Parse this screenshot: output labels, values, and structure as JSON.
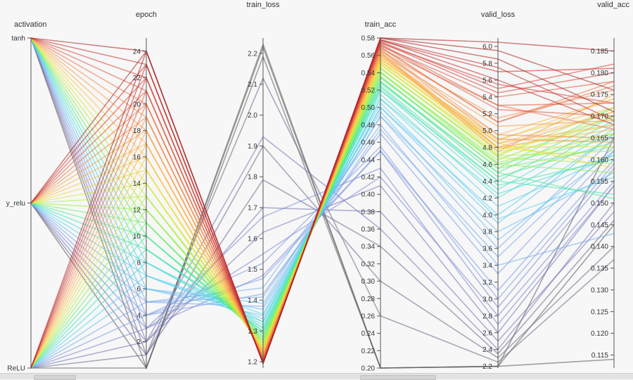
{
  "chart_data": {
    "type": "parallel_coordinates",
    "axes": [
      {
        "key": "activation",
        "label": "activation",
        "kind": "categorical",
        "categories": [
          "tanh",
          "y_relu",
          "ReLU"
        ]
      },
      {
        "key": "epoch",
        "label": "epoch",
        "kind": "numeric",
        "range": [
          0,
          25
        ],
        "ticks": [
          2,
          4,
          6,
          8,
          10,
          12,
          14,
          16,
          18,
          20,
          22,
          24
        ]
      },
      {
        "key": "train_loss",
        "label": "train_loss",
        "kind": "numeric",
        "range": [
          1.18,
          2.25
        ],
        "ticks": [
          1.2,
          1.3,
          1.4,
          1.5,
          1.6,
          1.7,
          1.8,
          1.9,
          2.0,
          2.1,
          2.2
        ]
      },
      {
        "key": "train_acc",
        "label": "train_acc",
        "kind": "numeric",
        "range": [
          0.2,
          0.58
        ],
        "ticks": [
          0.2,
          0.22,
          0.24,
          0.26,
          0.28,
          0.3,
          0.32,
          0.34,
          0.36,
          0.38,
          0.4,
          0.42,
          0.44,
          0.46,
          0.48,
          0.5,
          0.52,
          0.54,
          0.56,
          0.58
        ]
      },
      {
        "key": "valid_loss",
        "label": "valid_loss",
        "kind": "numeric",
        "range": [
          2.18,
          6.1
        ],
        "ticks": [
          2.2,
          2.4,
          2.6,
          2.8,
          3.0,
          3.2,
          3.4,
          3.6,
          3.8,
          4.0,
          4.2,
          4.4,
          4.6,
          4.8,
          5.0,
          5.2,
          5.4,
          5.6,
          5.8,
          6.0
        ]
      },
      {
        "key": "valid_acc",
        "label": "valid_acc",
        "kind": "numeric",
        "range": [
          0.112,
          0.188
        ],
        "ticks": [
          0.115,
          0.12,
          0.125,
          0.13,
          0.135,
          0.14,
          0.145,
          0.15,
          0.155,
          0.16,
          0.165,
          0.17,
          0.175,
          0.18,
          0.185
        ]
      }
    ],
    "records": [
      [
        "tanh",
        0,
        2.19,
        0.2,
        2.2,
        0.165
      ],
      [
        "tanh",
        1,
        1.79,
        0.34,
        2.35,
        0.146
      ],
      [
        "tanh",
        2,
        1.62,
        0.41,
        2.6,
        0.154
      ],
      [
        "tanh",
        3,
        1.48,
        0.45,
        2.9,
        0.158
      ],
      [
        "tanh",
        4,
        1.42,
        0.47,
        3.3,
        0.162
      ],
      [
        "tanh",
        5,
        1.38,
        0.49,
        3.6,
        0.165
      ],
      [
        "tanh",
        6,
        1.35,
        0.5,
        3.9,
        0.166
      ],
      [
        "tanh",
        7,
        1.33,
        0.51,
        4.1,
        0.161
      ],
      [
        "tanh",
        8,
        1.31,
        0.52,
        4.3,
        0.168
      ],
      [
        "tanh",
        9,
        1.3,
        0.525,
        4.4,
        0.152
      ],
      [
        "tanh",
        10,
        1.28,
        0.53,
        4.5,
        0.17
      ],
      [
        "tanh",
        11,
        1.27,
        0.535,
        4.55,
        0.163
      ],
      [
        "tanh",
        12,
        1.26,
        0.54,
        4.6,
        0.157
      ],
      [
        "tanh",
        13,
        1.25,
        0.545,
        4.7,
        0.172
      ],
      [
        "tanh",
        14,
        1.24,
        0.55,
        4.75,
        0.166
      ],
      [
        "tanh",
        15,
        1.235,
        0.553,
        4.8,
        0.16
      ],
      [
        "tanh",
        16,
        1.23,
        0.556,
        4.85,
        0.171
      ],
      [
        "tanh",
        17,
        1.225,
        0.559,
        4.95,
        0.174
      ],
      [
        "tanh",
        18,
        1.22,
        0.562,
        5.05,
        0.169
      ],
      [
        "tanh",
        19,
        1.215,
        0.565,
        5.15,
        0.176
      ],
      [
        "tanh",
        20,
        1.21,
        0.568,
        5.3,
        0.167
      ],
      [
        "tanh",
        21,
        1.205,
        0.571,
        5.4,
        0.178
      ],
      [
        "tanh",
        22,
        1.2,
        0.574,
        5.55,
        0.173
      ],
      [
        "tanh",
        23,
        1.197,
        0.577,
        5.7,
        0.181
      ],
      [
        "tanh",
        24,
        1.195,
        0.58,
        5.85,
        0.171
      ],
      [
        "y_relu",
        0,
        2.22,
        0.2,
        2.2,
        0.145
      ],
      [
        "y_relu",
        1,
        1.9,
        0.3,
        2.3,
        0.14
      ],
      [
        "y_relu",
        2,
        1.7,
        0.38,
        2.5,
        0.148
      ],
      [
        "y_relu",
        3,
        1.55,
        0.42,
        2.8,
        0.155
      ],
      [
        "y_relu",
        4,
        1.47,
        0.45,
        3.1,
        0.16
      ],
      [
        "y_relu",
        5,
        1.41,
        0.475,
        3.5,
        0.163
      ],
      [
        "y_relu",
        6,
        1.37,
        0.49,
        3.8,
        0.157
      ],
      [
        "y_relu",
        7,
        1.34,
        0.5,
        4.0,
        0.166
      ],
      [
        "y_relu",
        8,
        1.32,
        0.51,
        4.25,
        0.161
      ],
      [
        "y_relu",
        9,
        1.3,
        0.52,
        4.4,
        0.169
      ],
      [
        "y_relu",
        10,
        1.29,
        0.528,
        4.5,
        0.151
      ],
      [
        "y_relu",
        11,
        1.27,
        0.534,
        4.6,
        0.165
      ],
      [
        "y_relu",
        12,
        1.26,
        0.54,
        4.65,
        0.17
      ],
      [
        "y_relu",
        13,
        1.25,
        0.545,
        4.7,
        0.162
      ],
      [
        "y_relu",
        14,
        1.245,
        0.549,
        4.78,
        0.168
      ],
      [
        "y_relu",
        15,
        1.24,
        0.552,
        4.85,
        0.158
      ],
      [
        "y_relu",
        16,
        1.232,
        0.556,
        4.9,
        0.172
      ],
      [
        "y_relu",
        17,
        1.226,
        0.56,
        4.8,
        0.167
      ],
      [
        "y_relu",
        18,
        1.22,
        0.563,
        4.75,
        0.175
      ],
      [
        "y_relu",
        19,
        1.214,
        0.566,
        4.9,
        0.164
      ],
      [
        "y_relu",
        20,
        1.208,
        0.569,
        5.1,
        0.177
      ],
      [
        "y_relu",
        21,
        1.204,
        0.572,
        5.25,
        0.17
      ],
      [
        "y_relu",
        22,
        1.2,
        0.575,
        5.45,
        0.18
      ],
      [
        "y_relu",
        23,
        1.197,
        0.578,
        5.6,
        0.168
      ],
      [
        "y_relu",
        24,
        1.194,
        0.58,
        6.05,
        0.185
      ],
      [
        "ReLU",
        0,
        2.23,
        0.2,
        2.2,
        0.114
      ],
      [
        "ReLU",
        1,
        2.12,
        0.26,
        2.25,
        0.137
      ],
      [
        "ReLU",
        2,
        1.93,
        0.36,
        2.4,
        0.15
      ],
      [
        "ReLU",
        3,
        1.67,
        0.43,
        2.7,
        0.154
      ],
      [
        "ReLU",
        4,
        1.52,
        0.455,
        3.0,
        0.159
      ],
      [
        "ReLU",
        5,
        1.44,
        0.48,
        3.4,
        0.143
      ],
      [
        "ReLU",
        6,
        1.39,
        0.495,
        3.7,
        0.162
      ],
      [
        "ReLU",
        7,
        1.355,
        0.505,
        3.95,
        0.156
      ],
      [
        "ReLU",
        8,
        1.33,
        0.515,
        4.2,
        0.167
      ],
      [
        "ReLU",
        9,
        1.31,
        0.523,
        4.35,
        0.16
      ],
      [
        "ReLU",
        10,
        1.29,
        0.53,
        4.45,
        0.164
      ],
      [
        "ReLU",
        11,
        1.28,
        0.536,
        4.55,
        0.172
      ],
      [
        "ReLU",
        12,
        1.27,
        0.541,
        4.62,
        0.166
      ],
      [
        "ReLU",
        13,
        1.26,
        0.546,
        4.68,
        0.159
      ],
      [
        "ReLU",
        14,
        1.25,
        0.55,
        4.72,
        0.17
      ],
      [
        "ReLU",
        15,
        1.24,
        0.554,
        4.8,
        0.163
      ],
      [
        "ReLU",
        16,
        1.235,
        0.557,
        4.88,
        0.174
      ],
      [
        "ReLU",
        17,
        1.228,
        0.561,
        4.85,
        0.168
      ],
      [
        "ReLU",
        18,
        1.222,
        0.564,
        4.8,
        0.171
      ],
      [
        "ReLU",
        19,
        1.216,
        0.567,
        4.95,
        0.165
      ],
      [
        "ReLU",
        20,
        1.21,
        0.57,
        5.1,
        0.178
      ],
      [
        "ReLU",
        21,
        1.205,
        0.573,
        5.3,
        0.173
      ],
      [
        "ReLU",
        22,
        1.2,
        0.576,
        5.5,
        0.182
      ],
      [
        "ReLU",
        23,
        1.197,
        0.578,
        5.75,
        0.169
      ],
      [
        "ReLU",
        24,
        1.195,
        0.58,
        5.95,
        0.176
      ]
    ],
    "color_by": "epoch",
    "colormap": [
      "#5a5a5a",
      "#7a7ac8",
      "#7aa8f0",
      "#52d6f0",
      "#3ee8a0",
      "#8ef04a",
      "#e6e63a",
      "#ffb347",
      "#f08a4b",
      "#d9493f",
      "#b22222"
    ]
  },
  "colors": {
    "background": "#f7f7f7",
    "axis": "#555555"
  }
}
